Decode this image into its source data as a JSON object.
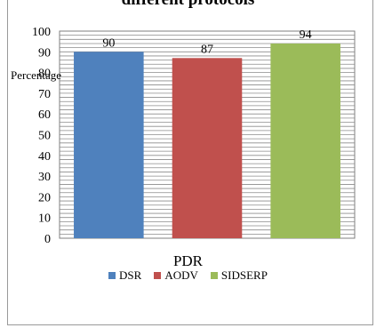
{
  "chart_data": {
    "type": "bar",
    "title": "different protocols",
    "xlabel": "PDR",
    "ylabel": "Percentage",
    "categories": [
      "DSR",
      "AODV",
      "SIDSERP"
    ],
    "values": [
      90,
      87,
      94
    ],
    "data_labels": [
      "90",
      "87",
      "94"
    ],
    "colors": [
      "#4f81bd",
      "#c0504d",
      "#9bbb59"
    ],
    "ylim": [
      0,
      100
    ],
    "yticks": [
      0,
      10,
      20,
      30,
      40,
      50,
      60,
      70,
      80,
      90,
      100
    ],
    "grid": true,
    "legend": {
      "position": "bottom",
      "entries": [
        "DSR",
        "AODV",
        "SIDSERP"
      ]
    }
  }
}
